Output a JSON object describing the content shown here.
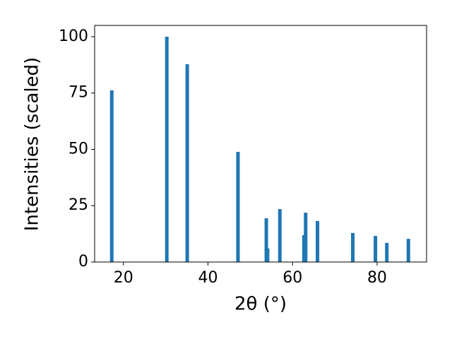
{
  "chart_data": {
    "type": "bar",
    "xlabel": "2θ (°)",
    "ylabel": "Intensities (scaled)",
    "x": [
      17.25,
      30.27,
      35.1,
      47.1,
      53.8,
      54.1,
      57.0,
      62.7,
      63.1,
      65.9,
      74.25,
      79.6,
      82.3,
      87.4
    ],
    "values": [
      76.2,
      100,
      87.8,
      48.9,
      19.4,
      6,
      23.5,
      11.9,
      21.9,
      18.2,
      12.9,
      11.6,
      8.5,
      10.3
    ],
    "color": "#1f77b4",
    "xlim": [
      13.2,
      91.7
    ],
    "xticks": [
      20,
      40,
      60,
      80
    ],
    "ylim": [
      0,
      105
    ],
    "yticks": [
      0,
      25,
      50,
      75,
      100
    ]
  }
}
